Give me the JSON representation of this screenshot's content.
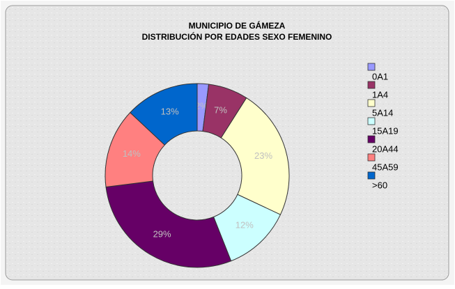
{
  "chart_data": {
    "type": "donut",
    "title": [
      "MUNICIPIO DE GÁMEZA",
      "DISTRIBUCIÓN POR EDADES SEXO FEMENINO"
    ],
    "categories": [
      "0A1",
      "1A4",
      "5A14",
      "15A19",
      "20A44",
      "45A59",
      ">60"
    ],
    "values": [
      2,
      7,
      23,
      12,
      29,
      14,
      13
    ],
    "value_labels": [
      "2%",
      "7%",
      "23%",
      "12%",
      "29%",
      "14%",
      "13%"
    ],
    "colors": [
      "#9999ff",
      "#993366",
      "#ffffcc",
      "#ccffff",
      "#660066",
      "#ff8080",
      "#0066cc"
    ],
    "legend": "right"
  }
}
